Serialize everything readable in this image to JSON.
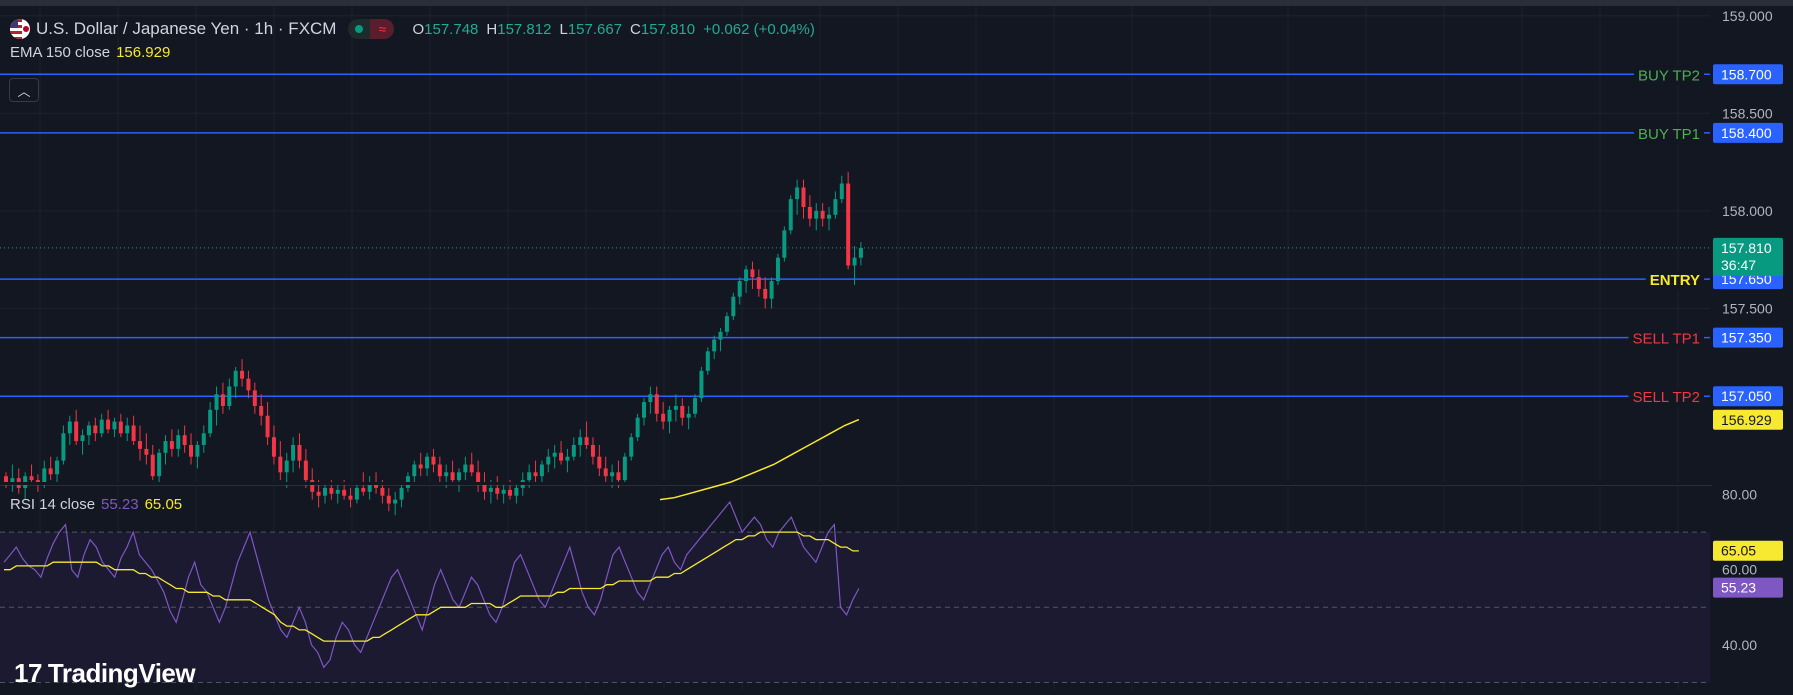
{
  "header": {
    "symbol_title": "U.S. Dollar / Japanese Yen · 1h · FXCM",
    "ohlc": {
      "o_label": "O",
      "o": "157.748",
      "h_label": "H",
      "h": "157.812",
      "l_label": "L",
      "l": "157.667",
      "c_label": "C",
      "c": "157.810",
      "change": "+0.062 (+0.04%)"
    },
    "market_status_icon": "market-open-dot-icon",
    "data_icon": "wave-icon"
  },
  "ema_legend": {
    "label": "EMA 150 close",
    "value": "156.929"
  },
  "rsi_legend": {
    "label": "RSI 14 close",
    "value": "55.23",
    "ma_value": "65.05"
  },
  "logo": {
    "text": "TradingView",
    "mark": "17"
  },
  "colors": {
    "background": "#131722",
    "up": "#089981",
    "down": "#f23645",
    "level_line": "#2962ff",
    "ema": "#f7e92f",
    "rsi": "#7e57c2",
    "buy_label": "#4caf50",
    "sell_label": "#f23645",
    "entry_label": "#f7e92f"
  },
  "chart_data": [
    {
      "type": "candlestick",
      "title": "U.S. Dollar / Japanese Yen",
      "price_axis": {
        "ticks": [
          "159.000",
          "158.500",
          "158.000",
          "157.500"
        ],
        "range": [
          156.6,
          159.05
        ]
      },
      "levels": [
        {
          "name": "BUY TP2",
          "price": "158.700"
        },
        {
          "name": "BUY TP1",
          "price": "158.400"
        },
        {
          "name": "ENTRY",
          "price": "157.650"
        },
        {
          "name": "SELL TP1",
          "price": "157.350"
        },
        {
          "name": "SELL TP2",
          "price": "157.050"
        }
      ],
      "last_price": {
        "value": "157.810",
        "countdown": "36:47"
      },
      "ema_value_badge": "156.929",
      "candles": [
        [
          156.64,
          156.66,
          156.58,
          156.61
        ],
        [
          156.61,
          156.7,
          156.56,
          156.63
        ],
        [
          156.63,
          156.68,
          156.55,
          156.58
        ],
        [
          156.58,
          156.66,
          156.52,
          156.64
        ],
        [
          156.64,
          156.7,
          156.6,
          156.62
        ],
        [
          156.62,
          156.65,
          156.56,
          156.6
        ],
        [
          156.6,
          156.72,
          156.58,
          156.68
        ],
        [
          156.68,
          156.74,
          156.62,
          156.65
        ],
        [
          156.65,
          156.74,
          156.6,
          156.72
        ],
        [
          156.72,
          156.9,
          156.7,
          156.86
        ],
        [
          156.86,
          156.95,
          156.8,
          156.92
        ],
        [
          156.92,
          156.98,
          156.8,
          156.82
        ],
        [
          156.82,
          156.88,
          156.75,
          156.85
        ],
        [
          156.85,
          156.92,
          156.8,
          156.9
        ],
        [
          156.9,
          156.94,
          156.82,
          156.86
        ],
        [
          156.86,
          156.96,
          156.84,
          156.93
        ],
        [
          156.93,
          156.98,
          156.86,
          156.88
        ],
        [
          156.88,
          156.94,
          156.84,
          156.92
        ],
        [
          156.92,
          156.96,
          156.84,
          156.86
        ],
        [
          156.86,
          156.94,
          156.82,
          156.9
        ],
        [
          156.9,
          156.95,
          156.8,
          156.82
        ],
        [
          156.82,
          156.9,
          156.72,
          156.78
        ],
        [
          156.78,
          156.86,
          156.7,
          156.75
        ],
        [
          156.75,
          156.8,
          156.62,
          156.64
        ],
        [
          156.64,
          156.78,
          156.6,
          156.76
        ],
        [
          156.76,
          156.85,
          156.7,
          156.82
        ],
        [
          156.82,
          156.88,
          156.74,
          156.78
        ],
        [
          156.78,
          156.88,
          156.74,
          156.85
        ],
        [
          156.85,
          156.9,
          156.76,
          156.8
        ],
        [
          156.8,
          156.86,
          156.7,
          156.74
        ],
        [
          156.74,
          156.82,
          156.68,
          156.8
        ],
        [
          156.8,
          156.9,
          156.76,
          156.86
        ],
        [
          156.86,
          157.02,
          156.84,
          156.98
        ],
        [
          156.98,
          157.1,
          156.9,
          157.06
        ],
        [
          157.06,
          157.12,
          156.96,
          157.0
        ],
        [
          157.0,
          157.14,
          156.98,
          157.1
        ],
        [
          157.1,
          157.2,
          157.04,
          157.18
        ],
        [
          157.18,
          157.24,
          157.1,
          157.14
        ],
        [
          157.14,
          157.18,
          157.04,
          157.08
        ],
        [
          157.08,
          157.12,
          156.96,
          157.0
        ],
        [
          157.0,
          157.06,
          156.9,
          156.95
        ],
        [
          156.95,
          157.02,
          156.8,
          156.84
        ],
        [
          156.84,
          156.9,
          156.7,
          156.74
        ],
        [
          156.74,
          156.82,
          156.62,
          156.66
        ],
        [
          156.66,
          156.76,
          156.58,
          156.72
        ],
        [
          156.72,
          156.84,
          156.66,
          156.8
        ],
        [
          156.8,
          156.86,
          156.68,
          156.72
        ],
        [
          156.72,
          156.78,
          156.58,
          156.62
        ],
        [
          156.62,
          156.68,
          156.52,
          156.56
        ],
        [
          156.56,
          156.62,
          156.48,
          156.54
        ],
        [
          156.54,
          156.6,
          156.5,
          156.58
        ],
        [
          156.58,
          156.62,
          156.52,
          156.55
        ],
        [
          156.55,
          156.6,
          156.5,
          156.57
        ],
        [
          156.57,
          156.62,
          156.52,
          156.54
        ],
        [
          156.54,
          156.58,
          156.48,
          156.52
        ],
        [
          156.52,
          156.6,
          156.5,
          156.58
        ],
        [
          156.58,
          156.66,
          156.54,
          156.56
        ],
        [
          156.56,
          156.64,
          156.52,
          156.6
        ],
        [
          156.6,
          156.66,
          156.55,
          156.58
        ],
        [
          156.58,
          156.62,
          156.5,
          156.54
        ],
        [
          156.54,
          156.58,
          156.46,
          156.5
        ],
        [
          156.5,
          156.56,
          156.44,
          156.52
        ],
        [
          156.52,
          156.6,
          156.48,
          156.58
        ],
        [
          156.58,
          156.66,
          156.56,
          156.64
        ],
        [
          156.64,
          156.72,
          156.6,
          156.7
        ],
        [
          156.7,
          156.76,
          156.64,
          156.68
        ],
        [
          156.68,
          156.76,
          156.64,
          156.74
        ],
        [
          156.74,
          156.78,
          156.66,
          156.7
        ],
        [
          156.7,
          156.74,
          156.6,
          156.64
        ],
        [
          156.64,
          156.7,
          156.58,
          156.66
        ],
        [
          156.66,
          156.72,
          156.6,
          156.62
        ],
        [
          156.62,
          156.68,
          156.56,
          156.66
        ],
        [
          156.66,
          156.74,
          156.62,
          156.7
        ],
        [
          156.7,
          156.76,
          156.64,
          156.66
        ],
        [
          156.66,
          156.72,
          156.56,
          156.6
        ],
        [
          156.6,
          156.66,
          156.52,
          156.56
        ],
        [
          156.56,
          156.62,
          156.5,
          156.58
        ],
        [
          156.58,
          156.64,
          156.52,
          156.55
        ],
        [
          156.55,
          156.6,
          156.5,
          156.57
        ],
        [
          156.57,
          156.62,
          156.52,
          156.54
        ],
        [
          156.54,
          156.6,
          156.5,
          156.58
        ],
        [
          156.58,
          156.66,
          156.54,
          156.62
        ],
        [
          156.62,
          156.7,
          156.58,
          156.66
        ],
        [
          156.66,
          156.72,
          156.6,
          156.64
        ],
        [
          156.64,
          156.72,
          156.6,
          156.7
        ],
        [
          156.7,
          156.78,
          156.66,
          156.74
        ],
        [
          156.74,
          156.8,
          156.68,
          156.76
        ],
        [
          156.76,
          156.82,
          156.7,
          156.72
        ],
        [
          156.72,
          156.78,
          156.66,
          156.74
        ],
        [
          156.74,
          156.84,
          156.72,
          156.8
        ],
        [
          156.8,
          156.88,
          156.74,
          156.84
        ],
        [
          156.84,
          156.92,
          156.78,
          156.8
        ],
        [
          156.8,
          156.84,
          156.7,
          156.74
        ],
        [
          156.74,
          156.8,
          156.64,
          156.68
        ],
        [
          156.68,
          156.74,
          156.6,
          156.64
        ],
        [
          156.64,
          156.7,
          156.58,
          156.66
        ],
        [
          156.66,
          156.72,
          156.58,
          156.62
        ],
        [
          156.62,
          156.76,
          156.6,
          156.74
        ],
        [
          156.74,
          156.86,
          156.72,
          156.84
        ],
        [
          156.84,
          156.96,
          156.82,
          156.94
        ],
        [
          156.94,
          157.04,
          156.9,
          157.02
        ],
        [
          157.02,
          157.1,
          156.96,
          157.06
        ],
        [
          157.06,
          157.1,
          156.92,
          156.96
        ],
        [
          156.96,
          157.02,
          156.88,
          156.92
        ],
        [
          156.92,
          157.0,
          156.86,
          156.98
        ],
        [
          156.98,
          157.06,
          156.92,
          157.0
        ],
        [
          157.0,
          157.04,
          156.9,
          156.94
        ],
        [
          156.94,
          157.0,
          156.88,
          156.96
        ],
        [
          156.96,
          157.06,
          156.94,
          157.04
        ],
        [
          157.04,
          157.2,
          157.02,
          157.18
        ],
        [
          157.18,
          157.3,
          157.16,
          157.28
        ],
        [
          157.28,
          157.36,
          157.24,
          157.34
        ],
        [
          157.34,
          157.4,
          157.28,
          157.38
        ],
        [
          157.38,
          157.48,
          157.36,
          157.46
        ],
        [
          157.46,
          157.58,
          157.44,
          157.56
        ],
        [
          157.56,
          157.66,
          157.52,
          157.64
        ],
        [
          157.64,
          157.72,
          157.58,
          157.7
        ],
        [
          157.7,
          157.74,
          157.6,
          157.66
        ],
        [
          157.66,
          157.7,
          157.56,
          157.6
        ],
        [
          157.6,
          157.66,
          157.5,
          157.55
        ],
        [
          157.55,
          157.66,
          157.5,
          157.64
        ],
        [
          157.64,
          157.78,
          157.62,
          157.76
        ],
        [
          157.76,
          157.92,
          157.74,
          157.9
        ],
        [
          157.9,
          158.08,
          157.88,
          158.06
        ],
        [
          158.06,
          158.16,
          157.98,
          158.12
        ],
        [
          158.12,
          158.16,
          157.96,
          158.02
        ],
        [
          158.02,
          158.08,
          157.92,
          157.96
        ],
        [
          157.96,
          158.04,
          157.9,
          158.0
        ],
        [
          158.0,
          158.04,
          157.92,
          157.96
        ],
        [
          157.96,
          158.02,
          157.9,
          157.98
        ],
        [
          157.98,
          158.1,
          157.96,
          158.06
        ],
        [
          158.06,
          158.18,
          158.04,
          158.14
        ],
        [
          158.14,
          158.2,
          157.7,
          157.72
        ],
        [
          157.72,
          157.82,
          157.62,
          157.76
        ],
        [
          157.76,
          157.84,
          157.72,
          157.81
        ]
      ],
      "ema_150": [
        156.52,
        156.53,
        156.55,
        156.57,
        156.59,
        156.61,
        156.64,
        156.67,
        156.7,
        156.74,
        156.78,
        156.82,
        156.86,
        156.9,
        156.93
      ]
    },
    {
      "type": "line",
      "title": "RSI 14 close",
      "y_axis": {
        "ticks": [
          "80.00",
          "60.00",
          "40.00"
        ],
        "range": [
          28,
          82
        ],
        "bands": [
          70,
          50
        ]
      },
      "rsi_badge": "55.23",
      "ma_badge": "65.05",
      "rsi": [
        62,
        64,
        66,
        63,
        61,
        60,
        58,
        63,
        67,
        70,
        72,
        60,
        58,
        64,
        68,
        66,
        62,
        60,
        58,
        63,
        66,
        70,
        64,
        62,
        60,
        57,
        54,
        49,
        46,
        52,
        58,
        62,
        56,
        54,
        50,
        46,
        50,
        56,
        62,
        66,
        70,
        64,
        58,
        52,
        48,
        44,
        42,
        46,
        50,
        46,
        40,
        38,
        34,
        36,
        42,
        46,
        44,
        40,
        38,
        42,
        46,
        50,
        54,
        58,
        60,
        56,
        52,
        48,
        44,
        50,
        56,
        60,
        56,
        52,
        50,
        54,
        58,
        56,
        52,
        48,
        46,
        50,
        56,
        62,
        64,
        60,
        56,
        52,
        50,
        54,
        58,
        62,
        66,
        60,
        54,
        50,
        48,
        52,
        58,
        64,
        66,
        62,
        58,
        54,
        52,
        56,
        60,
        64,
        66,
        62,
        60,
        64,
        66,
        68,
        70,
        72,
        74,
        76,
        78,
        74,
        70,
        72,
        74,
        72,
        68,
        66,
        70,
        72,
        74,
        70,
        66,
        64,
        62,
        66,
        70,
        72,
        50,
        48,
        52,
        55
      ],
      "ma": [
        60,
        60,
        61,
        61,
        61,
        61,
        61,
        61,
        62,
        62,
        62,
        62,
        62,
        62,
        62,
        62,
        61,
        61,
        60,
        60,
        60,
        60,
        59,
        59,
        58,
        58,
        57,
        56,
        55,
        55,
        54,
        54,
        54,
        54,
        53,
        53,
        52,
        52,
        52,
        52,
        52,
        51,
        50,
        49,
        48,
        46,
        45,
        45,
        44,
        44,
        43,
        42,
        41,
        41,
        41,
        41,
        41,
        41,
        41,
        41,
        42,
        42,
        43,
        44,
        45,
        46,
        47,
        48,
        48,
        48,
        49,
        50,
        50,
        50,
        50,
        50,
        51,
        51,
        51,
        51,
        50,
        50,
        51,
        52,
        53,
        53,
        53,
        53,
        53,
        53,
        54,
        54,
        55,
        55,
        55,
        55,
        55,
        55,
        56,
        56,
        57,
        57,
        57,
        57,
        57,
        57,
        58,
        58,
        58,
        59,
        59,
        60,
        61,
        62,
        63,
        64,
        65,
        66,
        67,
        68,
        68,
        69,
        69,
        70,
        70,
        70,
        70,
        70,
        70,
        70,
        69,
        69,
        68,
        68,
        68,
        67,
        66,
        66,
        65,
        65
      ]
    }
  ]
}
